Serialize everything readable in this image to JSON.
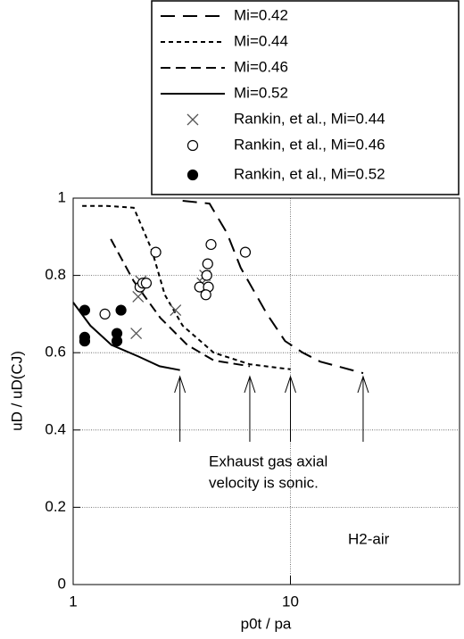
{
  "chart_data": {
    "type": "line",
    "x_label": "p0t / pa",
    "y_label": "uD / uD(CJ)",
    "xlim": [
      1,
      60
    ],
    "ylim": [
      0,
      1
    ],
    "x_log": true,
    "xticks": [
      1,
      10
    ],
    "yticks": [
      0,
      0.2,
      0.4,
      0.6,
      0.8,
      1
    ],
    "grid": true,
    "legend": "top-right",
    "series": [
      {
        "name": "Mi=0.42",
        "type": "line",
        "color": "#000000",
        "dash": "16,9",
        "x": [
          3.19,
          4.24,
          5.1,
          5.9,
          7.8,
          9.45,
          11.4,
          13.7,
          21.6
        ],
        "values": [
          0.993,
          0.986,
          0.91,
          0.82,
          0.7,
          0.63,
          0.6,
          0.577,
          0.547
        ]
      },
      {
        "name": "Mi=0.44",
        "type": "line",
        "color": "#000000",
        "dash": "5,4",
        "x": [
          1.1,
          1.43,
          1.9,
          2.3,
          2.64,
          3.19,
          4.44,
          6.5,
          10
        ],
        "values": [
          0.98,
          0.98,
          0.975,
          0.866,
          0.75,
          0.67,
          0.6,
          0.57,
          0.557
        ]
      },
      {
        "name": "Mi=0.46",
        "type": "line",
        "color": "#000000",
        "dash": "11,6",
        "x": [
          1.49,
          1.9,
          2.52,
          3.35,
          4.44,
          6.5
        ],
        "values": [
          0.894,
          0.785,
          0.69,
          0.62,
          0.58,
          0.565
        ]
      },
      {
        "name": "Mi=0.52",
        "type": "line",
        "color": "#000000",
        "dash": "none",
        "x": [
          1,
          1.2,
          1.5,
          2,
          2.5,
          3.1
        ],
        "values": [
          0.73,
          0.67,
          0.62,
          0.59,
          0.565,
          0.555
        ]
      },
      {
        "name": "Rankin, et al., Mi=0.44",
        "type": "scatter",
        "marker": "x",
        "color": "#555555",
        "x": [
          1.95,
          1.99,
          2.05,
          3.93,
          4.04,
          2.96
        ],
        "values": [
          0.65,
          0.745,
          0.785,
          0.78,
          0.8,
          0.71
        ]
      },
      {
        "name": "Rankin, et al., Mi=0.46",
        "type": "scatter",
        "marker": "open-circle",
        "color": "#000000",
        "x": [
          1.4,
          2.03,
          2.09,
          2.17,
          2.4,
          3.82,
          4.12,
          4.16,
          4.31,
          4.19,
          4.08,
          6.2
        ],
        "values": [
          0.7,
          0.77,
          0.78,
          0.78,
          0.86,
          0.77,
          0.8,
          0.83,
          0.88,
          0.77,
          0.75,
          0.86
        ]
      },
      {
        "name": "Rankin, et al., Mi=0.52",
        "type": "scatter",
        "marker": "filled-circle",
        "color": "#000000",
        "x": [
          1.13,
          1.13,
          1.13,
          1.59,
          1.59,
          1.66
        ],
        "values": [
          0.71,
          0.64,
          0.63,
          0.65,
          0.63,
          0.71
        ]
      }
    ],
    "annotations": [
      "Exhaust gas axial",
      "velocity is sonic.",
      "H2-air"
    ]
  }
}
